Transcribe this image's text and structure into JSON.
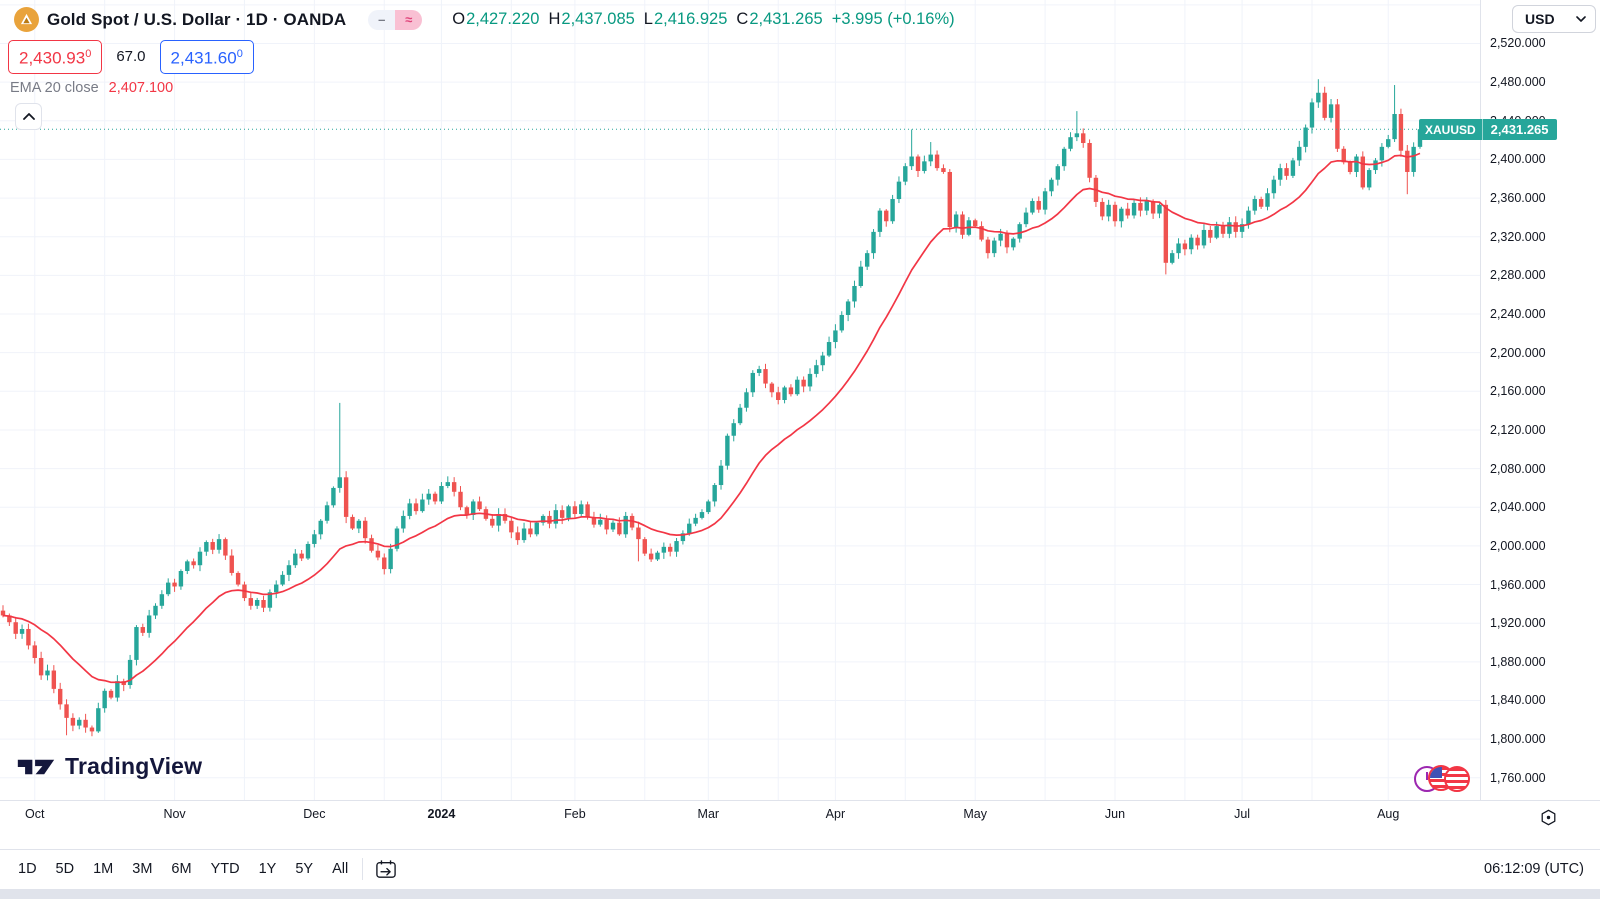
{
  "header": {
    "title": "Gold Spot / U.S. Dollar · 1D · OANDA",
    "ohlc": {
      "o_label": "O",
      "o": "2,427.220",
      "h_label": "H",
      "h": "2,437.085",
      "l_label": "L",
      "l": "2,416.925",
      "c_label": "C",
      "c": "2,431.265",
      "change": "+3.995 (+0.16%)"
    },
    "bid": "2,430.93",
    "bid_sup": "0",
    "spread": "67.0",
    "ask": "2,431.60",
    "ask_sup": "0",
    "indicator": {
      "name": "EMA 20 close",
      "value": "2,407.100"
    }
  },
  "currency_button": {
    "label": "USD"
  },
  "last_price_label": {
    "symbol": "XAUUSD",
    "price": "2,431.265"
  },
  "price_scale": {
    "labels": [
      "2,520.000",
      "2,480.000",
      "2,440.000",
      "2,400.000",
      "2,360.000",
      "2,320.000",
      "2,280.000",
      "2,240.000",
      "2,200.000",
      "2,160.000",
      "2,120.000",
      "2,080.000",
      "2,040.000",
      "2,000.000",
      "1,960.000",
      "1,920.000",
      "1,880.000",
      "1,840.000",
      "1,800.000",
      "1,760.000"
    ]
  },
  "time_axis": {
    "months": [
      {
        "label": "Oct",
        "i": 5
      },
      {
        "label": "Nov",
        "i": 27
      },
      {
        "label": "Dec",
        "i": 49
      },
      {
        "label": "2024",
        "i": 69,
        "bold": true
      },
      {
        "label": "Feb",
        "i": 90
      },
      {
        "label": "Mar",
        "i": 111
      },
      {
        "label": "Apr",
        "i": 131
      },
      {
        "label": "May",
        "i": 153
      },
      {
        "label": "Jun",
        "i": 175
      },
      {
        "label": "Jul",
        "i": 195
      },
      {
        "label": "Aug",
        "i": 218
      }
    ]
  },
  "toolbar": {
    "ranges": [
      "1D",
      "5D",
      "1M",
      "3M",
      "6M",
      "YTD",
      "1Y",
      "5Y",
      "All"
    ],
    "clock": "06:12:09 (UTC)"
  },
  "logo": {
    "text": "TradingView"
  },
  "chart_data": {
    "type": "candlestick",
    "symbol": "XAUUSD",
    "exchange": "OANDA",
    "interval": "1D",
    "title": "Gold Spot / U.S. Dollar",
    "ylim": [
      1737,
      2565
    ],
    "price_step": 40,
    "x_range_months": [
      "Oct 2023",
      "Aug 2024"
    ],
    "last_close": 2431.265,
    "ema_period": 20,
    "ema_last_value": 2407.1,
    "closes": [
      1928,
      1921,
      1909,
      1914,
      1897,
      1884,
      1866,
      1871,
      1852,
      1836,
      1822,
      1814,
      1820,
      1812,
      1808,
      1832,
      1850,
      1843,
      1860,
      1856,
      1882,
      1916,
      1910,
      1928,
      1938,
      1950,
      1962,
      1958,
      1974,
      1984,
      1980,
      1994,
      2004,
      1996,
      2007,
      1990,
      1972,
      1960,
      1946,
      1938,
      1944,
      1936,
      1952,
      1960,
      1970,
      1980,
      1992,
      1987,
      2002,
      2012,
      2026,
      2042,
      2060,
      2071,
      2030,
      2018,
      2026,
      2008,
      1995,
      1988,
      1976,
      1997,
      2018,
      2031,
      2044,
      2036,
      2048,
      2054,
      2046,
      2062,
      2066,
      2056,
      2040,
      2032,
      2046,
      2038,
      2028,
      2021,
      2033,
      2026,
      2014,
      2006,
      2018,
      2012,
      2024,
      2031,
      2023,
      2037,
      2029,
      2041,
      2033,
      2043,
      2030,
      2022,
      2027,
      2017,
      2024,
      2012,
      2031,
      2019,
      2007,
      1992,
      1986,
      1993,
      1999,
      1994,
      2005,
      2013,
      2023,
      2029,
      2035,
      2046,
      2063,
      2083,
      2114,
      2127,
      2143,
      2159,
      2179,
      2183,
      2168,
      2159,
      2151,
      2164,
      2157,
      2172,
      2165,
      2178,
      2187,
      2197,
      2211,
      2223,
      2239,
      2253,
      2269,
      2289,
      2303,
      2325,
      2347,
      2336,
      2359,
      2377,
      2393,
      2403,
      2388,
      2398,
      2405,
      2391,
      2387,
      2330,
      2343,
      2322,
      2337,
      2331,
      2317,
      2303,
      2316,
      2323,
      2309,
      2318,
      2333,
      2345,
      2357,
      2348,
      2367,
      2379,
      2393,
      2411,
      2423,
      2427,
      2417,
      2381,
      2356,
      2341,
      2353,
      2336,
      2349,
      2342,
      2355,
      2347,
      2357,
      2344,
      2353,
      2293,
      2303,
      2313,
      2307,
      2319,
      2311,
      2327,
      2319,
      2331,
      2323,
      2335,
      2325,
      2333,
      2347,
      2359,
      2351,
      2365,
      2379,
      2391,
      2383,
      2399,
      2413,
      2433,
      2459,
      2469,
      2443,
      2457,
      2411,
      2397,
      2387,
      2403,
      2371,
      2389,
      2399,
      2413,
      2421,
      2447,
      2409,
      2387,
      2413,
      2431.265
    ],
    "wick_spikes_high": {
      "53": 2148,
      "143": 2431,
      "146": 2418,
      "169": 2450,
      "207": 2483,
      "219": 2477
    },
    "wick_spikes_low": {
      "10": 1804,
      "14": 1803,
      "100": 1984,
      "183": 2281,
      "221": 2364
    },
    "colors": {
      "up": "#26a69a",
      "down": "#ef5350",
      "ema": "#f23645",
      "grid": "#f0f3fa",
      "last_price": "#26a69a",
      "ohlc_text": "#089981"
    }
  }
}
